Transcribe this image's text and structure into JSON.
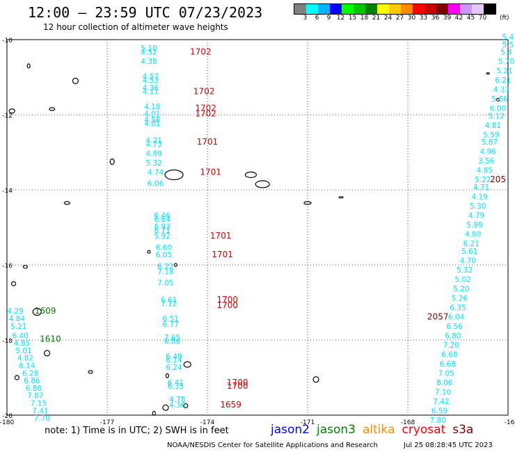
{
  "header": {
    "title": "12:00 – 23:59 UTC 07/23/2023",
    "subtitle": "12 hour collection of altimeter wave heights"
  },
  "colorbar": {
    "swatches": [
      "#808080",
      "#00ffff",
      "#00b4ff",
      "#0000ff",
      "#00ff00",
      "#00c800",
      "#008000",
      "#ffff00",
      "#ffc800",
      "#ff8c00",
      "#ff0000",
      "#c80000",
      "#800000",
      "#ff00ff",
      "#c896ff",
      "#e6c8ff",
      "#000000"
    ],
    "labels": [
      "3",
      "6",
      "9",
      "12",
      "15",
      "18",
      "21",
      "24",
      "27",
      "30",
      "33",
      "36",
      "39",
      "42",
      "45",
      "70"
    ],
    "unit": "(ft)"
  },
  "map": {
    "lon_ticks": [
      "-180",
      "-177",
      "-174",
      "-171",
      "-168",
      "-16"
    ],
    "lat_ticks": [
      "-10",
      "-12",
      "-14",
      "-16",
      "-18",
      "-20"
    ]
  },
  "chart_data": {
    "type": "scatter",
    "xlim": [
      -180,
      -165
    ],
    "ylim": [
      -20,
      -10
    ],
    "tracks": [
      {
        "name": "track-175",
        "color": "#00e0ff",
        "points": [
          {
            "lon": -175.75,
            "lat": -10.3,
            "v": "5.10"
          },
          {
            "lon": -175.75,
            "lat": -10.4,
            "v": "4.52"
          },
          {
            "lon": -175.75,
            "lat": -10.65,
            "v": "4.38"
          },
          {
            "lon": -175.7,
            "lat": -11.05,
            "v": "4.57"
          },
          {
            "lon": -175.7,
            "lat": -11.15,
            "v": "4.53"
          },
          {
            "lon": -175.7,
            "lat": -11.35,
            "v": "4.36"
          },
          {
            "lon": -175.7,
            "lat": -11.45,
            "v": "4.11"
          },
          {
            "lon": -175.65,
            "lat": -11.85,
            "v": "4.18"
          },
          {
            "lon": -175.65,
            "lat": -12.05,
            "v": "4.01"
          },
          {
            "lon": -175.65,
            "lat": -12.2,
            "v": "4.58"
          },
          {
            "lon": -175.65,
            "lat": -12.3,
            "v": "4.01"
          },
          {
            "lon": -175.6,
            "lat": -12.75,
            "v": "4.21"
          },
          {
            "lon": -175.6,
            "lat": -12.85,
            "v": "4.73"
          },
          {
            "lon": -175.6,
            "lat": -13.1,
            "v": "4.89"
          },
          {
            "lon": -175.6,
            "lat": -13.35,
            "v": "5.32"
          },
          {
            "lon": -175.55,
            "lat": -13.6,
            "v": "4.74"
          },
          {
            "lon": -175.55,
            "lat": -13.9,
            "v": "6.06"
          },
          {
            "lon": -175.35,
            "lat": -14.75,
            "v": "6.46"
          },
          {
            "lon": -175.35,
            "lat": -14.85,
            "v": "6.64"
          },
          {
            "lon": -175.35,
            "lat": -15.05,
            "v": "6.93"
          },
          {
            "lon": -175.35,
            "lat": -15.15,
            "v": "6.71"
          },
          {
            "lon": -175.35,
            "lat": -15.3,
            "v": "5.92"
          },
          {
            "lon": -175.3,
            "lat": -15.6,
            "v": "6.60"
          },
          {
            "lon": -175.3,
            "lat": -15.8,
            "v": "6.05"
          },
          {
            "lon": -175.25,
            "lat": -16.1,
            "v": "6.22"
          },
          {
            "lon": -175.25,
            "lat": -16.25,
            "v": "7.18"
          },
          {
            "lon": -175.25,
            "lat": -16.55,
            "v": "7.05"
          },
          {
            "lon": -175.15,
            "lat": -17.0,
            "v": "6.61"
          },
          {
            "lon": -175.15,
            "lat": -17.1,
            "v": "7.12"
          },
          {
            "lon": -175.1,
            "lat": -17.5,
            "v": "6.51"
          },
          {
            "lon": -175.1,
            "lat": -17.65,
            "v": "6.77"
          },
          {
            "lon": -175.05,
            "lat": -18.0,
            "v": "7.65"
          },
          {
            "lon": -175.05,
            "lat": -18.1,
            "v": "6.86"
          },
          {
            "lon": -175.0,
            "lat": -18.5,
            "v": "6.49"
          },
          {
            "lon": -175.0,
            "lat": -18.6,
            "v": "6.14"
          },
          {
            "lon": -175.0,
            "lat": -18.8,
            "v": "6.24"
          },
          {
            "lon": -174.95,
            "lat": -19.2,
            "v": "6.41"
          },
          {
            "lon": -174.95,
            "lat": -19.3,
            "v": "6.35"
          },
          {
            "lon": -174.9,
            "lat": -19.65,
            "v": "4.78"
          },
          {
            "lon": -174.9,
            "lat": -19.8,
            "v": "4.36"
          }
        ]
      },
      {
        "name": "track-179",
        "color": "#00e0ff",
        "points": [
          {
            "lon": -179.75,
            "lat": -17.3,
            "v": "4.29"
          },
          {
            "lon": -179.7,
            "lat": -17.5,
            "v": "4.84"
          },
          {
            "lon": -179.65,
            "lat": -17.7,
            "v": "5.21"
          },
          {
            "lon": -179.6,
            "lat": -17.95,
            "v": "6.40"
          },
          {
            "lon": -179.55,
            "lat": -18.15,
            "v": "4.85"
          },
          {
            "lon": -179.5,
            "lat": -18.35,
            "v": "5.01"
          },
          {
            "lon": -179.45,
            "lat": -18.55,
            "v": "4.82"
          },
          {
            "lon": -179.4,
            "lat": -18.75,
            "v": "6.14"
          },
          {
            "lon": -179.3,
            "lat": -18.95,
            "v": "6.28"
          },
          {
            "lon": -179.25,
            "lat": -19.15,
            "v": "6.86"
          },
          {
            "lon": -179.2,
            "lat": -19.35,
            "v": "6.86"
          },
          {
            "lon": -179.15,
            "lat": -19.55,
            "v": "7.87"
          },
          {
            "lon": -179.05,
            "lat": -19.75,
            "v": "7.15"
          },
          {
            "lon": -179.0,
            "lat": -19.95,
            "v": "7.41"
          },
          {
            "lon": -178.95,
            "lat": -20.15,
            "v": "7.70"
          }
        ]
      },
      {
        "name": "track-166",
        "color": "#00e0ff",
        "points": [
          {
            "lon": -165.0,
            "lat": -10.0,
            "v": "5.4"
          },
          {
            "lon": -165.0,
            "lat": -10.2,
            "v": "5.5"
          },
          {
            "lon": -165.05,
            "lat": -10.4,
            "v": "5.4"
          },
          {
            "lon": -165.05,
            "lat": -10.65,
            "v": "5.70"
          },
          {
            "lon": -165.1,
            "lat": -10.9,
            "v": "5.21"
          },
          {
            "lon": -165.15,
            "lat": -11.15,
            "v": "6.21"
          },
          {
            "lon": -165.2,
            "lat": -11.4,
            "v": "4.33"
          },
          {
            "lon": -165.25,
            "lat": -11.65,
            "v": "5.66"
          },
          {
            "lon": -165.3,
            "lat": -11.9,
            "v": "6.00"
          },
          {
            "lon": -165.35,
            "lat": -12.1,
            "v": "5.12"
          },
          {
            "lon": -165.45,
            "lat": -12.35,
            "v": "4.81"
          },
          {
            "lon": -165.5,
            "lat": -12.6,
            "v": "5.59"
          },
          {
            "lon": -165.55,
            "lat": -12.8,
            "v": "5.87"
          },
          {
            "lon": -165.6,
            "lat": -13.05,
            "v": "4.96"
          },
          {
            "lon": -165.65,
            "lat": -13.3,
            "v": "3.56"
          },
          {
            "lon": -165.7,
            "lat": -13.55,
            "v": "4.85"
          },
          {
            "lon": -165.75,
            "lat": -13.8,
            "v": "5.22"
          },
          {
            "lon": -165.8,
            "lat": -14.0,
            "v": "4.71"
          },
          {
            "lon": -165.85,
            "lat": -14.25,
            "v": "4.19"
          },
          {
            "lon": -165.9,
            "lat": -14.5,
            "v": "5.30"
          },
          {
            "lon": -165.95,
            "lat": -14.75,
            "v": "4.79"
          },
          {
            "lon": -166.0,
            "lat": -15.0,
            "v": "5.99"
          },
          {
            "lon": -166.05,
            "lat": -15.25,
            "v": "4.80"
          },
          {
            "lon": -166.1,
            "lat": -15.5,
            "v": "6.21"
          },
          {
            "lon": -166.15,
            "lat": -15.7,
            "v": "5.61"
          },
          {
            "lon": -166.2,
            "lat": -15.95,
            "v": "4.70"
          },
          {
            "lon": -166.3,
            "lat": -16.2,
            "v": "5.32"
          },
          {
            "lon": -166.35,
            "lat": -16.45,
            "v": "5.02"
          },
          {
            "lon": -166.4,
            "lat": -16.7,
            "v": "5.20"
          },
          {
            "lon": -166.45,
            "lat": -16.95,
            "v": "5.26"
          },
          {
            "lon": -166.5,
            "lat": -17.2,
            "v": "6.35"
          },
          {
            "lon": -166.55,
            "lat": -17.45,
            "v": "6.04"
          },
          {
            "lon": -166.6,
            "lat": -17.7,
            "v": "6.56"
          },
          {
            "lon": -166.65,
            "lat": -17.95,
            "v": "6.80"
          },
          {
            "lon": -166.7,
            "lat": -18.2,
            "v": "7.20"
          },
          {
            "lon": -166.75,
            "lat": -18.45,
            "v": "6.68"
          },
          {
            "lon": -166.8,
            "lat": -18.7,
            "v": "6.68"
          },
          {
            "lon": -166.85,
            "lat": -18.95,
            "v": "7.05"
          },
          {
            "lon": -166.9,
            "lat": -19.2,
            "v": "8.06"
          },
          {
            "lon": -166.95,
            "lat": -19.45,
            "v": "7.10"
          },
          {
            "lon": -167.0,
            "lat": -19.7,
            "v": "7.42"
          },
          {
            "lon": -167.05,
            "lat": -19.95,
            "v": "6.59"
          },
          {
            "lon": -167.1,
            "lat": -20.2,
            "v": "7.80"
          }
        ]
      }
    ],
    "time_labels": [
      {
        "lon": -174.2,
        "lat": -10.4,
        "t": "1702",
        "color": "#cc0000"
      },
      {
        "lon": -174.1,
        "lat": -11.45,
        "t": "1702",
        "color": "#cc0000"
      },
      {
        "lon": -174.05,
        "lat": -11.9,
        "t": "1702",
        "color": "#cc0000"
      },
      {
        "lon": -174.05,
        "lat": -12.05,
        "t": "1702",
        "color": "#cc0000"
      },
      {
        "lon": -174.0,
        "lat": -12.8,
        "t": "1701",
        "color": "#cc0000"
      },
      {
        "lon": -173.9,
        "lat": -13.6,
        "t": "1701",
        "color": "#cc0000"
      },
      {
        "lon": -173.6,
        "lat": -15.3,
        "t": "1701",
        "color": "#cc0000"
      },
      {
        "lon": -173.55,
        "lat": -15.8,
        "t": "1701",
        "color": "#cc0000"
      },
      {
        "lon": -173.4,
        "lat": -17.0,
        "t": "1700",
        "color": "#cc0000"
      },
      {
        "lon": -173.4,
        "lat": -17.15,
        "t": "1700",
        "color": "#cc0000"
      },
      {
        "lon": -173.1,
        "lat": -19.2,
        "t": "1700",
        "color": "#cc0000"
      },
      {
        "lon": -173.1,
        "lat": -19.3,
        "t": "1700",
        "color": "#cc0000"
      },
      {
        "lon": -173.3,
        "lat": -19.8,
        "t": "1659",
        "color": "#cc0000"
      },
      {
        "lon": -178.85,
        "lat": -17.3,
        "t": "1609",
        "color": "#008000"
      },
      {
        "lon": -178.7,
        "lat": -18.05,
        "t": "1610",
        "color": "#008000"
      },
      {
        "lon": -165.3,
        "lat": -13.8,
        "t": "205",
        "color": "#800000"
      },
      {
        "lon": -167.1,
        "lat": -17.45,
        "t": "2057",
        "color": "#800000"
      }
    ]
  },
  "footer": {
    "note": "note: 1) Time is in UTC; 2) SWH is in feet",
    "satellites": [
      {
        "name": "jason2",
        "color": "#0000ff"
      },
      {
        "name": "jason3",
        "color": "#008000"
      },
      {
        "name": "altika",
        "color": "#ff8c00"
      },
      {
        "name": "cryosat",
        "color": "#ff0000"
      },
      {
        "name": "s3a",
        "color": "#800000"
      }
    ],
    "credit": "NOAA/NESDIS Center for Satellite Applications and Research",
    "generated": "Jul 25 08:28:45 UTC 2023"
  }
}
